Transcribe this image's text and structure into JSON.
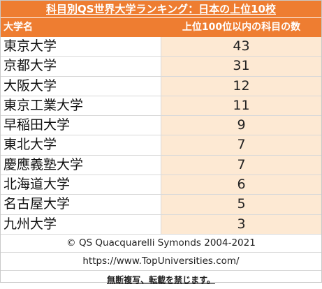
{
  "title": "科目別QS世界大学ランキング：日本の上位10校",
  "header": {
    "col_university": "大学名",
    "col_count": "上位100位以内の科目の数"
  },
  "rows": [
    {
      "name": "東京大学",
      "count": "43"
    },
    {
      "name": "京都大学",
      "count": "31"
    },
    {
      "name": "大阪大学",
      "count": "12"
    },
    {
      "name": "東京工業大学",
      "count": "11"
    },
    {
      "name": "早稲田大学",
      "count": "9"
    },
    {
      "name": "東北大学",
      "count": "7"
    },
    {
      "name": "慶應義塾大学",
      "count": "7"
    },
    {
      "name": "北海道大学",
      "count": "6"
    },
    {
      "name": "名古屋大学",
      "count": "5"
    },
    {
      "name": "九州大学",
      "count": "3"
    }
  ],
  "footer": {
    "copyright": "© QS Quacquarelli Symonds 2004-2021",
    "url": "https://www.TopUniversities.com/",
    "notice": "無断複写、転載を禁じます。"
  },
  "colors": {
    "header_bg": "#ee7d31",
    "value_bg": "#fde9d3"
  }
}
